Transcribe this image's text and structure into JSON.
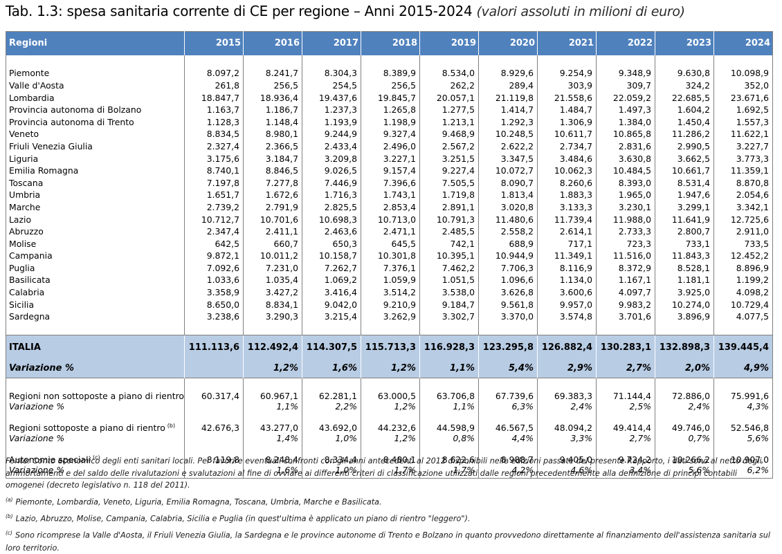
{
  "title": {
    "main": "Tab. 1.3: spesa sanitaria corrente di CE per regione – Anni 2015-2024",
    "subtitle": "(valori assoluti in milioni di euro)"
  },
  "table": {
    "header_label": "Regioni",
    "years": [
      "2015",
      "2016",
      "2017",
      "2018",
      "2019",
      "2020",
      "2021",
      "2022",
      "2023",
      "2024"
    ],
    "rows": [
      {
        "label": "Piemonte",
        "values": [
          "8.097,2",
          "8.241,7",
          "8.304,3",
          "8.389,9",
          "8.534,0",
          "8.929,6",
          "9.254,9",
          "9.348,9",
          "9.630,8",
          "10.098,9"
        ]
      },
      {
        "label": "Valle d'Aosta",
        "values": [
          "261,8",
          "256,5",
          "254,5",
          "256,5",
          "262,2",
          "289,4",
          "303,9",
          "309,7",
          "324,2",
          "352,0"
        ]
      },
      {
        "label": "Lombardia",
        "values": [
          "18.847,7",
          "18.936,4",
          "19.437,6",
          "19.845,7",
          "20.057,1",
          "21.119,8",
          "21.558,6",
          "22.059,2",
          "22.685,5",
          "23.671,6"
        ]
      },
      {
        "label": "Provincia autonoma di Bolzano",
        "values": [
          "1.163,7",
          "1.186,7",
          "1.237,3",
          "1.265,8",
          "1.277,5",
          "1.414,7",
          "1.484,7",
          "1.497,3",
          "1.604,2",
          "1.692,5"
        ]
      },
      {
        "label": "Provincia autonoma di Trento",
        "values": [
          "1.128,3",
          "1.148,4",
          "1.193,9",
          "1.198,9",
          "1.213,1",
          "1.292,3",
          "1.306,9",
          "1.384,0",
          "1.450,4",
          "1.557,3"
        ]
      },
      {
        "label": "Veneto",
        "values": [
          "8.834,5",
          "8.980,1",
          "9.244,9",
          "9.327,4",
          "9.468,9",
          "10.248,5",
          "10.611,7",
          "10.865,8",
          "11.286,2",
          "11.622,1"
        ]
      },
      {
        "label": "Friuli Venezia Giulia",
        "values": [
          "2.327,4",
          "2.366,5",
          "2.433,4",
          "2.496,0",
          "2.567,2",
          "2.622,2",
          "2.734,7",
          "2.831,6",
          "2.990,5",
          "3.227,7"
        ]
      },
      {
        "label": "Liguria",
        "values": [
          "3.175,6",
          "3.184,7",
          "3.209,8",
          "3.227,1",
          "3.251,5",
          "3.347,5",
          "3.484,6",
          "3.630,8",
          "3.662,5",
          "3.773,3"
        ]
      },
      {
        "label": "Emilia Romagna",
        "values": [
          "8.740,1",
          "8.846,5",
          "9.026,5",
          "9.157,4",
          "9.227,4",
          "10.072,7",
          "10.062,3",
          "10.484,5",
          "10.661,7",
          "11.359,1"
        ]
      },
      {
        "label": "Toscana",
        "values": [
          "7.197,8",
          "7.277,8",
          "7.446,9",
          "7.396,6",
          "7.505,5",
          "8.090,7",
          "8.260,6",
          "8.393,0",
          "8.531,4",
          "8.870,8"
        ]
      },
      {
        "label": "Umbria",
        "values": [
          "1.651,7",
          "1.672,6",
          "1.716,3",
          "1.743,1",
          "1.719,8",
          "1.813,4",
          "1.883,3",
          "1.965,0",
          "1.947,6",
          "2.054,6"
        ]
      },
      {
        "label": "Marche",
        "values": [
          "2.739,2",
          "2.791,9",
          "2.825,5",
          "2.853,4",
          "2.891,1",
          "3.020,8",
          "3.133,3",
          "3.230,1",
          "3.299,1",
          "3.342,1"
        ]
      },
      {
        "label": "Lazio",
        "values": [
          "10.712,7",
          "10.701,6",
          "10.698,3",
          "10.713,0",
          "10.791,3",
          "11.480,6",
          "11.739,4",
          "11.988,0",
          "11.641,9",
          "12.725,6"
        ]
      },
      {
        "label": "Abruzzo",
        "values": [
          "2.347,4",
          "2.411,1",
          "2.463,6",
          "2.471,1",
          "2.485,5",
          "2.558,2",
          "2.614,1",
          "2.733,3",
          "2.800,7",
          "2.911,0"
        ]
      },
      {
        "label": "Molise",
        "values": [
          "642,5",
          "660,7",
          "650,3",
          "645,5",
          "742,1",
          "688,9",
          "717,1",
          "723,3",
          "733,1",
          "733,5"
        ]
      },
      {
        "label": "Campania",
        "values": [
          "9.872,1",
          "10.011,2",
          "10.158,7",
          "10.301,8",
          "10.395,1",
          "10.944,9",
          "11.349,1",
          "11.516,0",
          "11.843,3",
          "12.452,2"
        ]
      },
      {
        "label": "Puglia",
        "values": [
          "7.092,6",
          "7.231,0",
          "7.262,7",
          "7.376,1",
          "7.462,2",
          "7.706,3",
          "8.116,9",
          "8.372,9",
          "8.528,1",
          "8.896,9"
        ]
      },
      {
        "label": "Basilicata",
        "values": [
          "1.033,6",
          "1.035,4",
          "1.069,2",
          "1.059,9",
          "1.051,5",
          "1.096,6",
          "1.134,0",
          "1.167,1",
          "1.181,1",
          "1.199,2"
        ]
      },
      {
        "label": "Calabria",
        "values": [
          "3.358,9",
          "3.427,2",
          "3.416,4",
          "3.514,2",
          "3.538,0",
          "3.626,8",
          "3.600,6",
          "4.097,7",
          "3.925,0",
          "4.098,2"
        ]
      },
      {
        "label": "Sicilia",
        "values": [
          "8.650,0",
          "8.834,1",
          "9.042,0",
          "9.210,9",
          "9.184,7",
          "9.561,8",
          "9.957,0",
          "9.983,2",
          "10.274,0",
          "10.729,4"
        ]
      },
      {
        "label": "Sardegna",
        "values": [
          "3.238,6",
          "3.290,3",
          "3.215,4",
          "3.262,9",
          "3.302,7",
          "3.370,0",
          "3.574,8",
          "3.701,6",
          "3.896,9",
          "4.077,5"
        ]
      }
    ],
    "italia": {
      "label": "ITALIA",
      "values": [
        "111.113,6",
        "112.492,4",
        "114.307,5",
        "115.713,3",
        "116.928,3",
        "123.295,8",
        "126.882,4",
        "130.283,1",
        "132.898,3",
        "139.445,4"
      ],
      "var_label": "Variazione %",
      "var_values": [
        "",
        "1,2%",
        "1,6%",
        "1,2%",
        "1,1%",
        "5,4%",
        "2,9%",
        "2,7%",
        "2,0%",
        "4,9%"
      ]
    },
    "groups": [
      {
        "label": "Regioni non sottoposte a piano di rientro",
        "note": "(a)",
        "values": [
          "60.317,4",
          "60.967,1",
          "62.281,1",
          "63.000,5",
          "63.706,8",
          "67.739,6",
          "69.383,3",
          "71.144,4",
          "72.886,0",
          "75.991,6"
        ],
        "var_label": "Variazione %",
        "var_values": [
          "",
          "1,1%",
          "2,2%",
          "1,2%",
          "1,1%",
          "6,3%",
          "2,4%",
          "2,5%",
          "2,4%",
          "4,3%"
        ]
      },
      {
        "label": "Regioni sottoposte a piano di rientro",
        "note": "(b)",
        "values": [
          "42.676,3",
          "43.277,0",
          "43.692,0",
          "44.232,6",
          "44.598,9",
          "46.567,5",
          "48.094,2",
          "49.414,4",
          "49.746,0",
          "52.546,8"
        ],
        "var_label": "Variazione %",
        "var_values": [
          "",
          "1,4%",
          "1,0%",
          "1,2%",
          "0,8%",
          "4,4%",
          "3,3%",
          "2,7%",
          "0,7%",
          "5,6%"
        ]
      },
      {
        "label": "Autonomie speciali",
        "note": "(c)",
        "values": [
          "8.119,8",
          "8.248,4",
          "8.334,4",
          "8.480,1",
          "8.622,6",
          "8.988,7",
          "9.405,0",
          "9.724,2",
          "10.266,2",
          "10.907,0"
        ],
        "var_label": "Variazione %",
        "var_values": [
          "",
          "1,6%",
          "1,0%",
          "1,7%",
          "1,7%",
          "4,2%",
          "4,6%",
          "3,4%",
          "5,6%",
          "6,2%"
        ]
      }
    ]
  },
  "notes": {
    "source": "Fonte: Conto economico degli enti sanitari locali. Per favorire eventuali confronti con gli anni antecedenti al 2012 disponibili nelle edizioni passate del presente Rapporto, i dati sono al netto degli ammortamenti e del saldo delle rivalutazioni e svalutazioni al fine di ovviare ai differenti criteri di classificazione utilizzati dalle regioni precedentemente alla definizione di principi contabili omogenei (decreto legislativo n. 118 del 2011).",
    "footnotes": [
      {
        "ref": "(a)",
        "text": "Piemonte, Lombardia, Veneto, Liguria, Emilia Romagna, Toscana, Umbria, Marche e Basilicata."
      },
      {
        "ref": "(b)",
        "text": "Lazio, Abruzzo, Molise, Campania, Calabria, Sicilia e Puglia (in quest'ultima è applicato un piano di rientro \"leggero\")."
      },
      {
        "ref": "(c)",
        "text": "Sono ricomprese la Valle d'Aosta, il Friuli Venezia Giulia, la Sardegna e le province autonome di Trento e Bolzano in quanto provvedono direttamente al finanziamento dell'assistenza sanitaria sul loro territorio."
      }
    ]
  }
}
